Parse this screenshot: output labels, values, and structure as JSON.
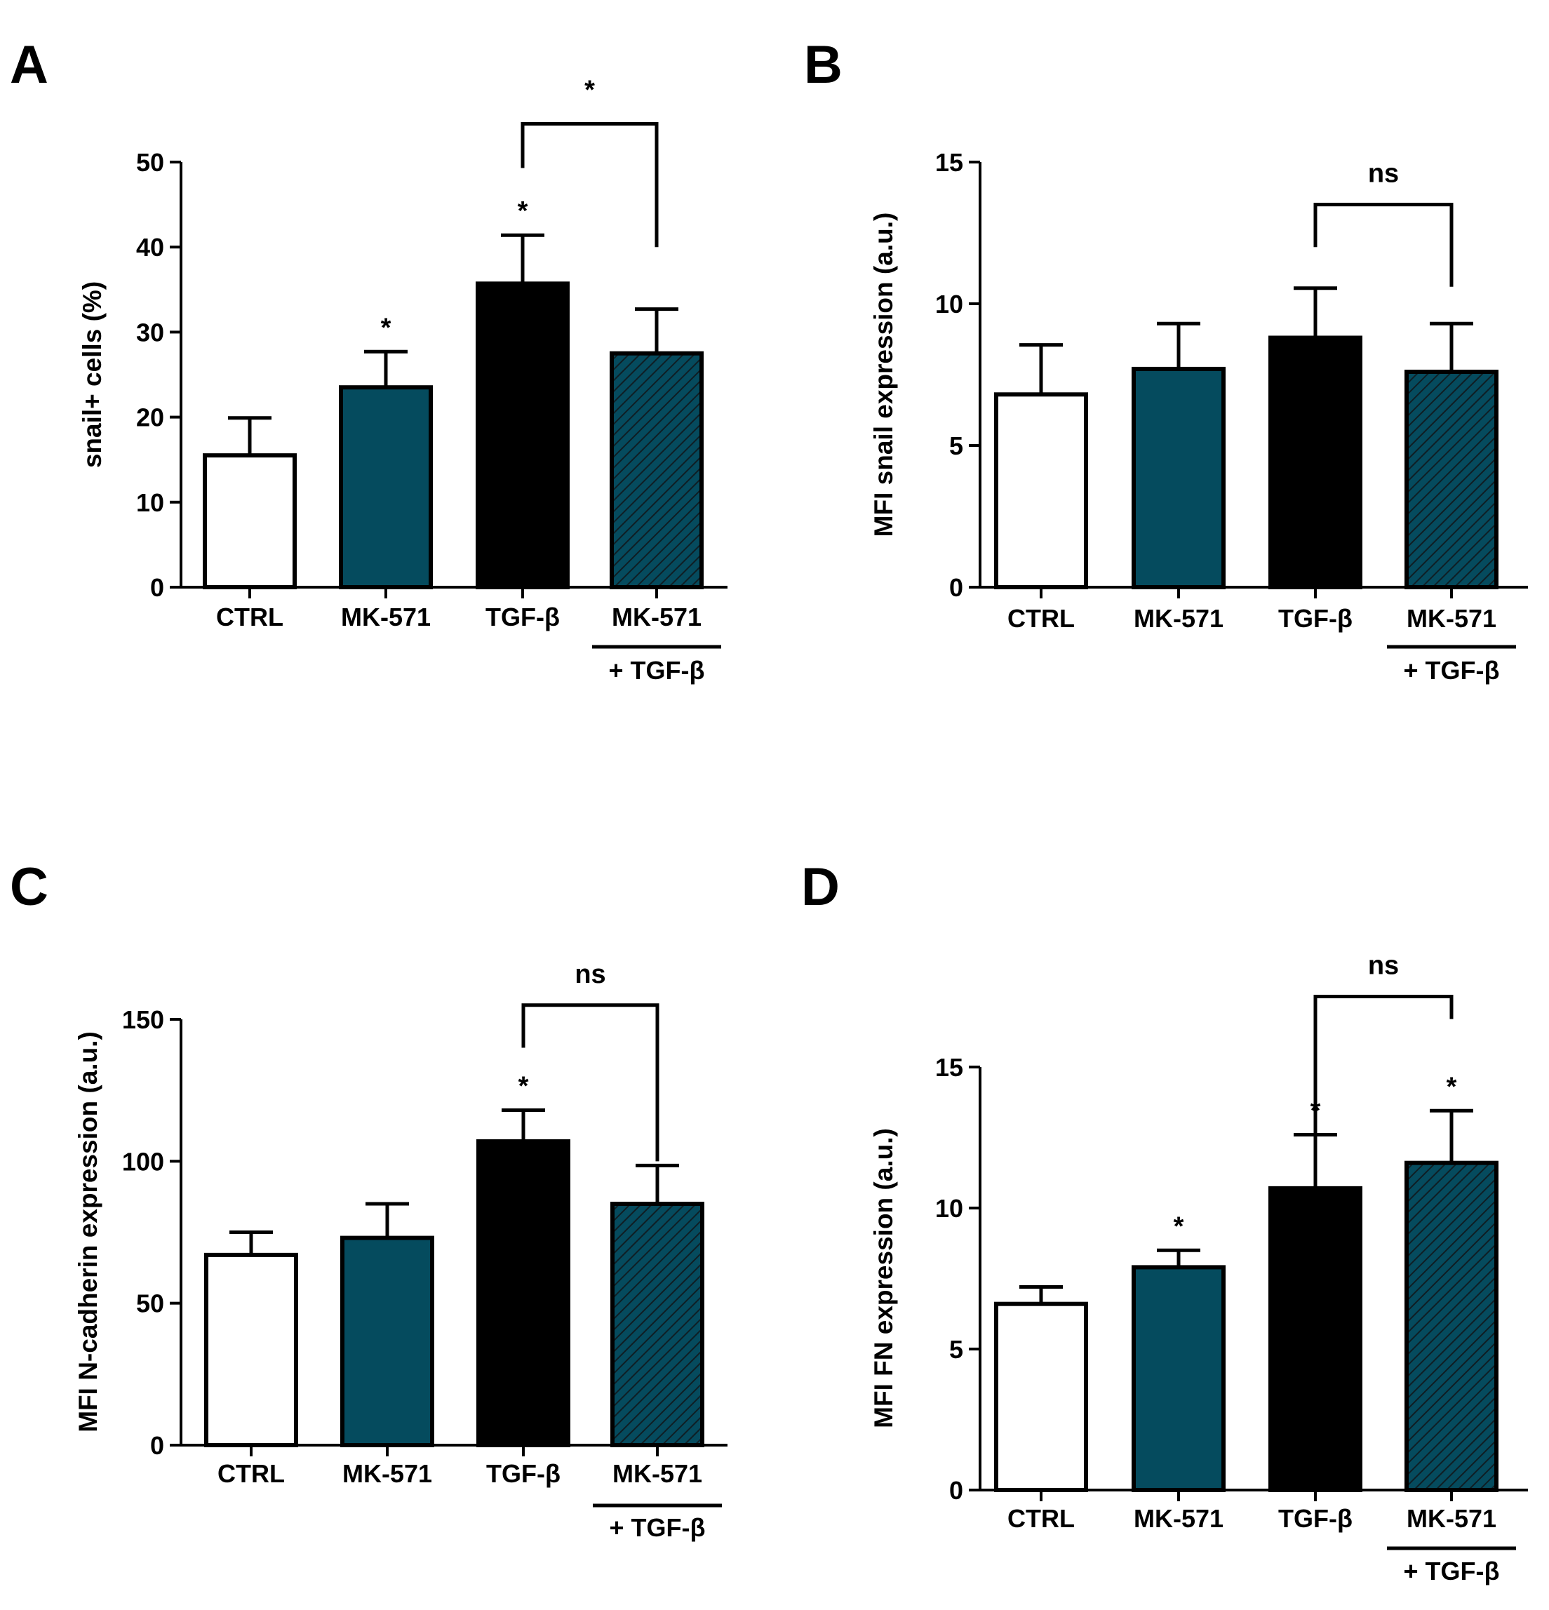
{
  "chart_data": [
    {
      "panel": "A",
      "type": "bar",
      "ylabel": "snail+ cells (%)",
      "ylim": [
        0,
        50
      ],
      "yticks": [
        0,
        10,
        20,
        30,
        40,
        50
      ],
      "categories": [
        "CTRL",
        "MK-571",
        "TGF-β",
        "MK-571"
      ],
      "category_sublabel": "+ TGF-β",
      "values": [
        15.5,
        23.5,
        35.7,
        27.5
      ],
      "errors": [
        4.4,
        4.2,
        5.7,
        5.2
      ],
      "bar_colors": [
        "#ffffff",
        "#054b5e",
        "#000000",
        "#054b5e"
      ],
      "bar_patterns": [
        "none",
        "none",
        "none",
        "hatch"
      ],
      "bar_stars": [
        "",
        "*",
        "*",
        ""
      ],
      "bracket": {
        "from": 2,
        "to": 3,
        "label": "*",
        "top": 54.5,
        "from_end": 49.3,
        "to_end": 40
      }
    },
    {
      "panel": "B",
      "type": "bar",
      "ylabel": "MFI snail expression (a.u.)",
      "ylim": [
        0,
        15
      ],
      "yticks": [
        0,
        5,
        10,
        15
      ],
      "categories": [
        "CTRL",
        "MK-571",
        "TGF-β",
        "MK-571"
      ],
      "category_sublabel": "+ TGF-β",
      "values": [
        6.8,
        7.7,
        8.8,
        7.6
      ],
      "errors": [
        1.75,
        1.6,
        1.75,
        1.7
      ],
      "bar_colors": [
        "#ffffff",
        "#054b5e",
        "#000000",
        "#054b5e"
      ],
      "bar_patterns": [
        "none",
        "none",
        "none",
        "hatch"
      ],
      "bar_stars": [
        "",
        "",
        "",
        ""
      ],
      "bracket": {
        "from": 2,
        "to": 3,
        "label": "ns",
        "top": 13.5,
        "from_end": 12.0,
        "to_end": 10.6
      }
    },
    {
      "panel": "C",
      "type": "bar",
      "ylabel": "MFI N-cadherin expression (a.u.)",
      "ylim": [
        0,
        150
      ],
      "yticks": [
        0,
        50,
        100,
        150
      ],
      "categories": [
        "CTRL",
        "MK-571",
        "TGF-β",
        "MK-571"
      ],
      "category_sublabel": "+ TGF-β",
      "values": [
        67,
        73,
        107,
        85
      ],
      "errors": [
        8,
        12,
        11,
        13.5
      ],
      "bar_colors": [
        "#ffffff",
        "#054b5e",
        "#000000",
        "#054b5e"
      ],
      "bar_patterns": [
        "none",
        "none",
        "none",
        "hatch"
      ],
      "bar_stars": [
        "",
        "",
        "*",
        ""
      ],
      "bracket": {
        "from": 2,
        "to": 3,
        "label": "ns",
        "top": 155,
        "from_end": 140,
        "to_end": 100
      }
    },
    {
      "panel": "D",
      "type": "bar",
      "ylabel": "MFI FN expression (a.u.)",
      "ylim": [
        0,
        15
      ],
      "yticks": [
        0,
        5,
        10,
        15
      ],
      "categories": [
        "CTRL",
        "MK-571",
        "TGF-β",
        "MK-571"
      ],
      "category_sublabel": "+ TGF-β",
      "values": [
        6.6,
        7.9,
        10.7,
        11.6
      ],
      "errors": [
        0.6,
        0.6,
        1.9,
        1.85
      ],
      "bar_colors": [
        "#ffffff",
        "#054b5e",
        "#000000",
        "#054b5e"
      ],
      "bar_patterns": [
        "none",
        "none",
        "none",
        "hatch"
      ],
      "bar_stars": [
        "",
        "*",
        "*",
        "*"
      ],
      "bracket": {
        "from": 2,
        "to": 3,
        "label": "ns",
        "top": 17.5,
        "from_end": 11.8,
        "to_end": 16.7
      }
    }
  ]
}
